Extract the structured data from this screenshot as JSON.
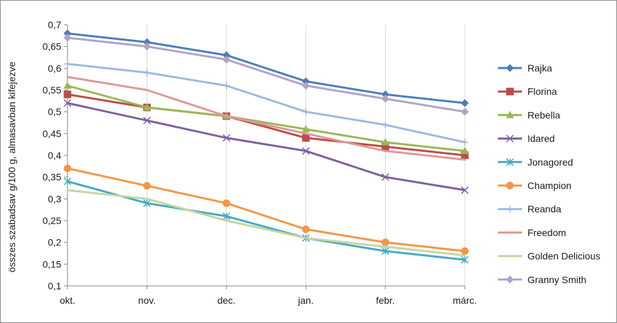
{
  "chart_data": {
    "type": "line",
    "title": "",
    "xlabel": "",
    "ylabel": "összes szabadsav g/100 g, almasavban kifejezve",
    "categories": [
      "okt.",
      "nov.",
      "dec.",
      "jan.",
      "febr.",
      "márc."
    ],
    "ylim": [
      0.1,
      0.7
    ],
    "yticks": [
      "0,1",
      "0,15",
      "0,2",
      "0,25",
      "0,3",
      "0,35",
      "0,4",
      "0,45",
      "0,5",
      "0,55",
      "0,6",
      "0,65",
      "0,7"
    ],
    "grid": "vertical",
    "legend": "right",
    "series": [
      {
        "name": "Rajka",
        "color": "#4a7ebb",
        "marker": "diamond",
        "values": [
          0.68,
          0.66,
          0.63,
          0.57,
          0.54,
          0.52
        ]
      },
      {
        "name": "Florina",
        "color": "#be4b48",
        "marker": "square",
        "values": [
          0.54,
          0.51,
          0.49,
          0.44,
          0.42,
          0.4
        ]
      },
      {
        "name": "Rebella",
        "color": "#98b954",
        "marker": "triangle",
        "values": [
          0.56,
          0.51,
          0.49,
          0.46,
          0.43,
          0.41
        ]
      },
      {
        "name": "Idared",
        "color": "#7d60a0",
        "marker": "x",
        "values": [
          0.52,
          0.48,
          0.44,
          0.41,
          0.35,
          0.32
        ]
      },
      {
        "name": "Jonagored",
        "color": "#46aac5",
        "marker": "star",
        "values": [
          0.34,
          0.29,
          0.26,
          0.21,
          0.18,
          0.16
        ]
      },
      {
        "name": "Champion",
        "color": "#f49646",
        "marker": "circle",
        "values": [
          0.37,
          0.33,
          0.29,
          0.23,
          0.2,
          0.18
        ]
      },
      {
        "name": "Reanda",
        "color": "#9db9e0",
        "marker": "plus",
        "values": [
          0.61,
          0.59,
          0.56,
          0.5,
          0.47,
          0.43
        ]
      },
      {
        "name": "Freedom",
        "color": "#dd9996",
        "marker": "none",
        "values": [
          0.58,
          0.55,
          0.49,
          0.45,
          0.41,
          0.39
        ]
      },
      {
        "name": "Golden Delicious",
        "color": "#c4d6a0",
        "marker": "none",
        "values": [
          0.32,
          0.3,
          0.25,
          0.21,
          0.19,
          0.17
        ]
      },
      {
        "name": "Granny Smith",
        "color": "#b3a2c7",
        "marker": "diamond",
        "values": [
          0.67,
          0.65,
          0.62,
          0.56,
          0.53,
          0.5
        ]
      }
    ]
  }
}
